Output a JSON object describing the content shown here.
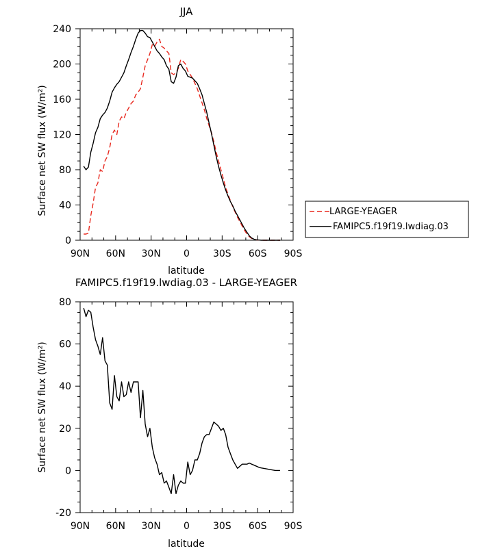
{
  "chart_data": [
    {
      "type": "line",
      "title": "JJA",
      "xlabel": "latitude",
      "ylabel": "Surface net SW flux (W/m²)",
      "xlim": [
        90,
        -90
      ],
      "ylim": [
        0,
        240
      ],
      "xticks": [
        90,
        60,
        30,
        0,
        -30,
        -60,
        -90
      ],
      "xtick_labels": [
        "90N",
        "60N",
        "30N",
        "0",
        "30S",
        "60S",
        "90S"
      ],
      "yticks": [
        0,
        40,
        80,
        120,
        160,
        200,
        240
      ],
      "ytick_labels": [
        "0",
        "40",
        "80",
        "120",
        "160",
        "200",
        "240"
      ],
      "legend_position": "right",
      "series": [
        {
          "name": "LARGE-YEAGER",
          "color": "#e8281e",
          "dash": "dashed",
          "x": [
            87,
            85,
            83,
            81,
            79,
            77,
            75,
            73,
            71,
            69,
            67,
            65,
            63,
            61,
            59,
            57,
            55,
            53,
            51,
            49,
            47,
            45,
            43,
            41,
            39,
            37,
            35,
            33,
            31,
            29,
            27,
            25,
            23,
            21,
            19,
            17,
            15,
            13,
            11,
            9,
            7,
            5,
            3,
            1,
            -1,
            -3,
            -5,
            -7,
            -9,
            -11,
            -13,
            -15,
            -17,
            -19,
            -21,
            -23,
            -25,
            -27,
            -29,
            -31,
            -33,
            -35,
            -37,
            -39,
            -41,
            -43,
            -45,
            -47,
            -49,
            -51,
            -53,
            -55,
            -57,
            -59,
            -61,
            -63,
            -65,
            -67,
            -69,
            -71,
            -73,
            -75,
            -77,
            -79
          ],
          "y": [
            7,
            7,
            8,
            28,
            42,
            60,
            65,
            80,
            78,
            90,
            95,
            105,
            120,
            125,
            120,
            135,
            140,
            138,
            145,
            150,
            155,
            158,
            165,
            168,
            172,
            185,
            198,
            205,
            212,
            222,
            220,
            225,
            228,
            220,
            218,
            215,
            212,
            190,
            188,
            190,
            195,
            205,
            203,
            200,
            192,
            188,
            184,
            178,
            172,
            164,
            156,
            148,
            138,
            130,
            122,
            112,
            100,
            90,
            80,
            70,
            60,
            52,
            45,
            38,
            32,
            26,
            21,
            16,
            11,
            7,
            4,
            2,
            1,
            0.5,
            0.2,
            0.1,
            0,
            0,
            0,
            0,
            0,
            0,
            0,
            0
          ]
        },
        {
          "name": "FAMIPC5.f19f19.lwdiag.03",
          "color": "#000000",
          "dash": "solid",
          "x": [
            87,
            85,
            83,
            81,
            79,
            77,
            75,
            73,
            71,
            69,
            67,
            65,
            63,
            61,
            59,
            57,
            55,
            53,
            51,
            49,
            47,
            45,
            43,
            41,
            39,
            37,
            35,
            33,
            31,
            29,
            27,
            25,
            23,
            21,
            19,
            17,
            15,
            13,
            11,
            9,
            7,
            5,
            3,
            1,
            -1,
            -3,
            -5,
            -7,
            -9,
            -11,
            -13,
            -15,
            -17,
            -19,
            -21,
            -23,
            -25,
            -27,
            -29,
            -31,
            -33,
            -35,
            -37,
            -39,
            -41,
            -43,
            -45,
            -47,
            -49,
            -51,
            -53,
            -55,
            -57,
            -59,
            -61,
            -63,
            -65,
            -67,
            -69,
            -71,
            -73,
            -75,
            -77,
            -79
          ],
          "y": [
            84,
            80,
            83,
            100,
            110,
            122,
            128,
            138,
            142,
            145,
            150,
            158,
            168,
            173,
            177,
            180,
            185,
            190,
            198,
            205,
            213,
            220,
            228,
            235,
            238,
            238,
            235,
            231,
            230,
            225,
            220,
            215,
            212,
            208,
            205,
            198,
            194,
            180,
            178,
            185,
            198,
            200,
            195,
            192,
            186,
            185,
            184,
            181,
            178,
            172,
            165,
            155,
            145,
            133,
            121,
            108,
            95,
            84,
            74,
            65,
            57,
            50,
            44,
            39,
            33,
            28,
            23,
            18,
            13,
            9,
            5,
            2.5,
            1.2,
            0.5,
            0.2,
            0,
            0,
            0,
            0,
            0,
            0,
            0,
            0,
            0
          ]
        }
      ]
    },
    {
      "type": "line",
      "title": "FAMIPC5.f19f19.lwdiag.03 - LARGE-YEAGER",
      "xlabel": "latitude",
      "ylabel": "Surface net SW flux (W/m²)",
      "xlim": [
        90,
        -90
      ],
      "ylim": [
        -20,
        80
      ],
      "xticks": [
        90,
        60,
        30,
        0,
        -30,
        -60,
        -90
      ],
      "xtick_labels": [
        "90N",
        "60N",
        "30N",
        "0",
        "30S",
        "60S",
        "90S"
      ],
      "yticks": [
        -20,
        0,
        20,
        40,
        60,
        80
      ],
      "ytick_labels": [
        "-20",
        "0",
        "20",
        "40",
        "60",
        "80"
      ],
      "series": [
        {
          "color": "#000000",
          "dash": "solid",
          "x": [
            87,
            85,
            83,
            81,
            79,
            77,
            75,
            73,
            71,
            69,
            67,
            65,
            63,
            61,
            59,
            57,
            55,
            53,
            51,
            49,
            47,
            45,
            43,
            41,
            39,
            37,
            35,
            33,
            31,
            29,
            27,
            25,
            23,
            21,
            19,
            17,
            15,
            13,
            11,
            9,
            7,
            5,
            3,
            1,
            -1,
            -3,
            -5,
            -7,
            -9,
            -11,
            -13,
            -15,
            -17,
            -19,
            -21,
            -23,
            -25,
            -27,
            -29,
            -31,
            -33,
            -35,
            -37,
            -39,
            -41,
            -43,
            -45,
            -47,
            -49,
            -51,
            -53,
            -55,
            -57,
            -59,
            -61,
            -63,
            -65,
            -67,
            -69,
            -71,
            -73,
            -75,
            -77,
            -79
          ],
          "y": [
            77,
            73,
            76,
            75,
            68,
            62,
            59,
            55,
            63,
            52,
            50,
            32,
            29,
            45,
            35,
            33,
            42,
            35,
            36,
            42,
            37,
            42,
            42,
            42,
            25,
            38,
            22,
            16,
            20,
            11,
            6,
            3,
            -2,
            -1,
            -6,
            -5,
            -8,
            -11,
            -2,
            -11,
            -7,
            -5,
            -6,
            -6,
            4,
            -2,
            0,
            5,
            5,
            8,
            13,
            16,
            17,
            17,
            20,
            23,
            22,
            21,
            19,
            20,
            17,
            11,
            8,
            5,
            3,
            1,
            2,
            3,
            3,
            3,
            3.5,
            3,
            2.5,
            2,
            1.5,
            1.2,
            1,
            0.8,
            0.6,
            0.4,
            0.2,
            0,
            0,
            0
          ]
        }
      ]
    }
  ]
}
